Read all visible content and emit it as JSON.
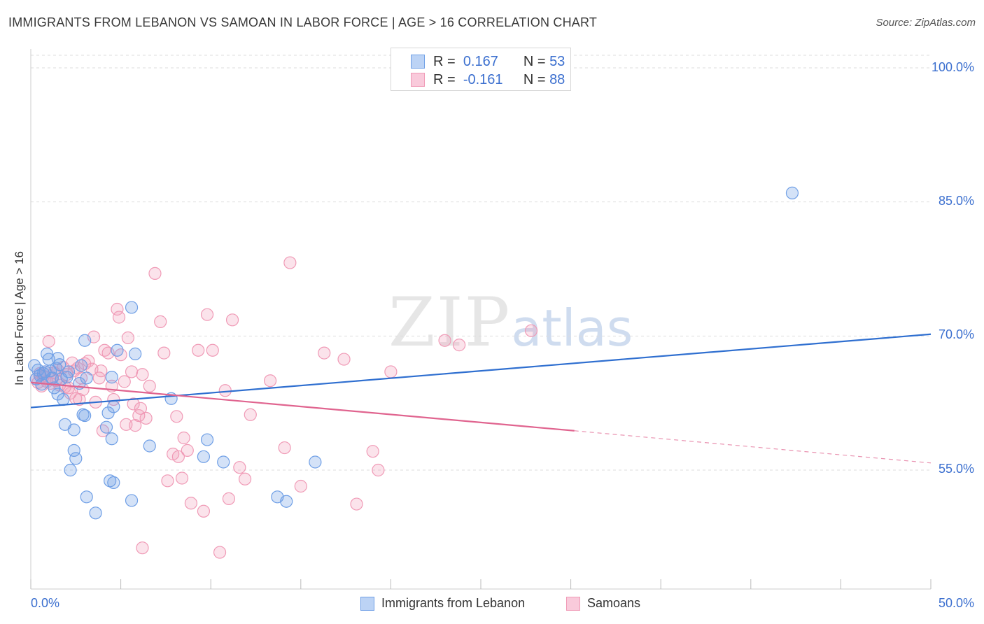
{
  "title": "IMMIGRANTS FROM LEBANON VS SAMOAN IN LABOR FORCE | AGE > 16 CORRELATION CHART",
  "source": "Source: ZipAtlas.com",
  "watermark": {
    "zip": "ZIP",
    "atlas": "atlas"
  },
  "legend_top": {
    "rows": [
      {
        "r_label": "R =",
        "r_value": "0.167",
        "n_label": "N =",
        "n_value": "53"
      },
      {
        "r_label": "R =",
        "r_value": "-0.161",
        "n_label": "N =",
        "n_value": "88"
      }
    ]
  },
  "chart_data": {
    "type": "scatter",
    "title": "IMMIGRANTS FROM LEBANON VS SAMOAN IN LABOR FORCE | AGE > 16 CORRELATION CHART",
    "xlabel": "",
    "ylabel": "In Labor Force | Age > 16",
    "xlim": [
      0,
      50
    ],
    "ylim": [
      40,
      103
    ],
    "x_tick_labels": [
      "0.0%",
      "50.0%"
    ],
    "y_ticks": [
      55,
      70,
      85,
      100
    ],
    "y_tick_labels": [
      "55.0%",
      "70.0%",
      "85.0%",
      "100.0%"
    ],
    "grid": true,
    "legend_position": "bottom",
    "colors": {
      "lebanon": "#6f9fe6",
      "samoan": "#f09ab6",
      "lebanon_line": "#2f6fd0",
      "samoan_line": "#e0648f"
    },
    "series": [
      {
        "name": "Immigrants from Lebanon",
        "R": 0.167,
        "N": 53,
        "trend": {
          "x": [
            0,
            50
          ],
          "y": [
            62.0,
            70.2
          ]
        },
        "points": [
          [
            0.2,
            66.7
          ],
          [
            0.3,
            65.2
          ],
          [
            0.4,
            66.2
          ],
          [
            0.5,
            65.6
          ],
          [
            0.6,
            64.6
          ],
          [
            0.7,
            65.8
          ],
          [
            0.8,
            66.0
          ],
          [
            0.9,
            68.0
          ],
          [
            1.0,
            67.4
          ],
          [
            1.1,
            66.1
          ],
          [
            1.2,
            65.3
          ],
          [
            1.3,
            64.2
          ],
          [
            1.4,
            66.4
          ],
          [
            1.5,
            67.5
          ],
          [
            1.5,
            63.5
          ],
          [
            1.6,
            66.8
          ],
          [
            1.7,
            65.2
          ],
          [
            1.8,
            62.9
          ],
          [
            1.9,
            60.1
          ],
          [
            2.0,
            65.4
          ],
          [
            2.1,
            66.0
          ],
          [
            2.2,
            55.0
          ],
          [
            2.4,
            59.5
          ],
          [
            2.4,
            57.2
          ],
          [
            2.5,
            56.3
          ],
          [
            2.7,
            64.7
          ],
          [
            2.8,
            66.7
          ],
          [
            2.9,
            61.2
          ],
          [
            3.0,
            61.1
          ],
          [
            3.0,
            69.5
          ],
          [
            3.1,
            65.3
          ],
          [
            3.1,
            52.0
          ],
          [
            3.6,
            50.2
          ],
          [
            4.2,
            59.8
          ],
          [
            4.3,
            61.4
          ],
          [
            4.8,
            68.4
          ],
          [
            4.5,
            58.5
          ],
          [
            4.4,
            53.8
          ],
          [
            4.5,
            65.4
          ],
          [
            4.6,
            62.1
          ],
          [
            4.6,
            53.6
          ],
          [
            5.6,
            73.2
          ],
          [
            5.8,
            68.0
          ],
          [
            5.6,
            51.6
          ],
          [
            6.6,
            57.7
          ],
          [
            7.8,
            63.0
          ],
          [
            9.6,
            56.5
          ],
          [
            9.8,
            58.4
          ],
          [
            10.7,
            55.9
          ],
          [
            13.7,
            52.0
          ],
          [
            14.2,
            51.5
          ],
          [
            15.8,
            55.9
          ],
          [
            42.3,
            86.0
          ]
        ]
      },
      {
        "name": "Samoans",
        "R": -0.161,
        "N": 88,
        "trend": {
          "x": [
            0,
            30.2
          ],
          "y": [
            64.8,
            59.4
          ]
        },
        "trend_dashed": {
          "x": [
            30.2,
            50
          ],
          "y": [
            59.4,
            55.8
          ]
        },
        "points": [
          [
            0.3,
            65.2
          ],
          [
            0.4,
            64.8
          ],
          [
            0.5,
            65.8
          ],
          [
            0.6,
            64.4
          ],
          [
            0.7,
            65.5
          ],
          [
            0.8,
            66.0
          ],
          [
            0.9,
            64.9
          ],
          [
            1.0,
            69.4
          ],
          [
            1.1,
            64.7
          ],
          [
            1.2,
            65.3
          ],
          [
            1.3,
            65.9
          ],
          [
            1.4,
            65.0
          ],
          [
            1.5,
            66.2
          ],
          [
            1.6,
            64.5
          ],
          [
            1.8,
            66.5
          ],
          [
            1.9,
            64.3
          ],
          [
            2.0,
            65.7
          ],
          [
            2.1,
            64.2
          ],
          [
            2.2,
            63.6
          ],
          [
            2.3,
            67.0
          ],
          [
            2.4,
            66.1
          ],
          [
            2.5,
            63.0
          ],
          [
            2.6,
            66.4
          ],
          [
            2.7,
            62.9
          ],
          [
            2.8,
            65.3
          ],
          [
            2.9,
            64.0
          ],
          [
            3.0,
            66.9
          ],
          [
            3.2,
            67.2
          ],
          [
            3.4,
            66.3
          ],
          [
            3.5,
            69.9
          ],
          [
            3.6,
            62.6
          ],
          [
            3.8,
            65.3
          ],
          [
            3.9,
            66.1
          ],
          [
            4.0,
            59.4
          ],
          [
            4.1,
            68.4
          ],
          [
            4.3,
            68.1
          ],
          [
            4.5,
            64.4
          ],
          [
            4.6,
            62.9
          ],
          [
            4.8,
            73.0
          ],
          [
            4.9,
            72.1
          ],
          [
            5.0,
            67.9
          ],
          [
            5.2,
            64.9
          ],
          [
            5.3,
            60.1
          ],
          [
            5.4,
            69.8
          ],
          [
            5.6,
            66.0
          ],
          [
            5.7,
            62.4
          ],
          [
            5.8,
            60.0
          ],
          [
            6.0,
            61.1
          ],
          [
            6.1,
            61.9
          ],
          [
            6.2,
            65.7
          ],
          [
            6.4,
            60.8
          ],
          [
            6.6,
            64.4
          ],
          [
            6.9,
            77.0
          ],
          [
            7.2,
            71.6
          ],
          [
            7.4,
            68.1
          ],
          [
            7.6,
            53.8
          ],
          [
            7.9,
            56.8
          ],
          [
            8.1,
            61.0
          ],
          [
            8.2,
            56.5
          ],
          [
            8.4,
            54.1
          ],
          [
            8.5,
            58.6
          ],
          [
            8.7,
            57.2
          ],
          [
            8.9,
            51.3
          ],
          [
            9.3,
            68.4
          ],
          [
            9.6,
            50.4
          ],
          [
            9.8,
            72.4
          ],
          [
            10.1,
            68.4
          ],
          [
            10.5,
            45.8
          ],
          [
            10.8,
            63.9
          ],
          [
            11.0,
            51.8
          ],
          [
            11.2,
            71.8
          ],
          [
            11.6,
            55.3
          ],
          [
            11.9,
            54.0
          ],
          [
            12.2,
            61.2
          ],
          [
            13.3,
            65.0
          ],
          [
            14.1,
            57.5
          ],
          [
            14.4,
            78.2
          ],
          [
            15.0,
            53.2
          ],
          [
            16.3,
            68.1
          ],
          [
            17.4,
            67.4
          ],
          [
            18.1,
            51.2
          ],
          [
            19.0,
            57.1
          ],
          [
            19.3,
            55.0
          ],
          [
            20.0,
            66.0
          ],
          [
            23.0,
            69.5
          ],
          [
            23.8,
            69.0
          ],
          [
            27.8,
            70.6
          ],
          [
            6.2,
            46.3
          ]
        ]
      }
    ]
  },
  "legend_bottom": [
    "Immigrants from Lebanon",
    "Samoans"
  ]
}
